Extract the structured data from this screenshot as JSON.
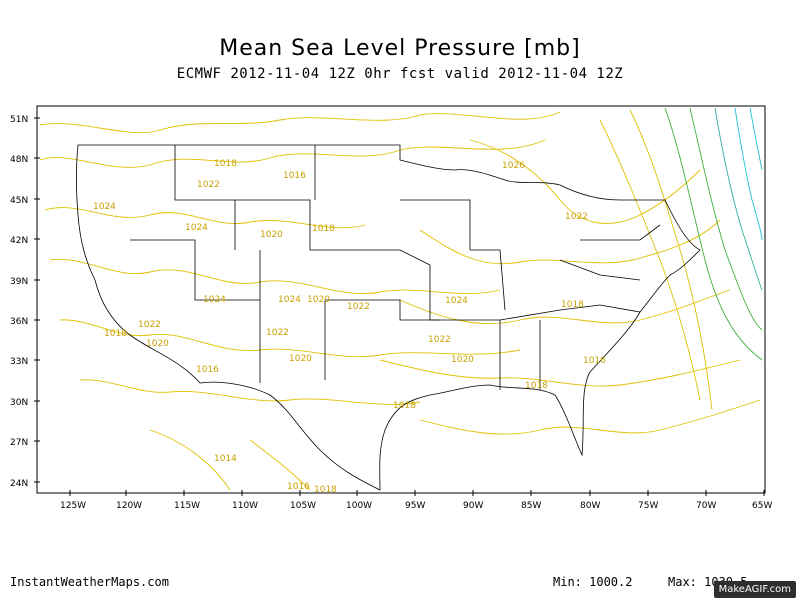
{
  "header": {
    "title": "Mean Sea Level Pressure [mb]",
    "subtitle": "ECMWF 2012-11-04 12Z 0hr fcst valid 2012-11-04 12Z"
  },
  "axes": {
    "lat_labels": [
      "51N",
      "48N",
      "45N",
      "42N",
      "39N",
      "36N",
      "33N",
      "30N",
      "27N",
      "24N"
    ],
    "lon_labels": [
      "125W",
      "120W",
      "115W",
      "110W",
      "105W",
      "100W",
      "95W",
      "90W",
      "85W",
      "80W",
      "75W",
      "70W",
      "65W"
    ]
  },
  "contour_labels": [
    {
      "text": "1024"
    },
    {
      "text": "1022"
    },
    {
      "text": "1018"
    },
    {
      "text": "1016"
    },
    {
      "text": "1026"
    },
    {
      "text": "1022"
    },
    {
      "text": "1024"
    },
    {
      "text": "1020"
    },
    {
      "text": "1018"
    },
    {
      "text": "1024"
    },
    {
      "text": "1024"
    },
    {
      "text": "1020"
    },
    {
      "text": "1022"
    },
    {
      "text": "1022"
    },
    {
      "text": "1018"
    },
    {
      "text": "1020"
    },
    {
      "text": "1022"
    },
    {
      "text": "1024"
    },
    {
      "text": "1018"
    },
    {
      "text": "1016"
    },
    {
      "text": "1020"
    },
    {
      "text": "1016"
    },
    {
      "text": "1022"
    },
    {
      "text": "1020"
    },
    {
      "text": "1018"
    },
    {
      "text": "1018"
    },
    {
      "text": "1014"
    },
    {
      "text": "1016"
    },
    {
      "text": "1018"
    }
  ],
  "footer": {
    "brand": "InstantWeatherMaps.com",
    "min": "Min: 1000.2",
    "max": "Max: 1030.5"
  },
  "watermark": "MakeAGIF.com",
  "colors": {
    "contour_yellow": "#e0c000",
    "contour_green": "#40b040",
    "contour_cyan": "#20c0d0",
    "borders": "#000000"
  }
}
